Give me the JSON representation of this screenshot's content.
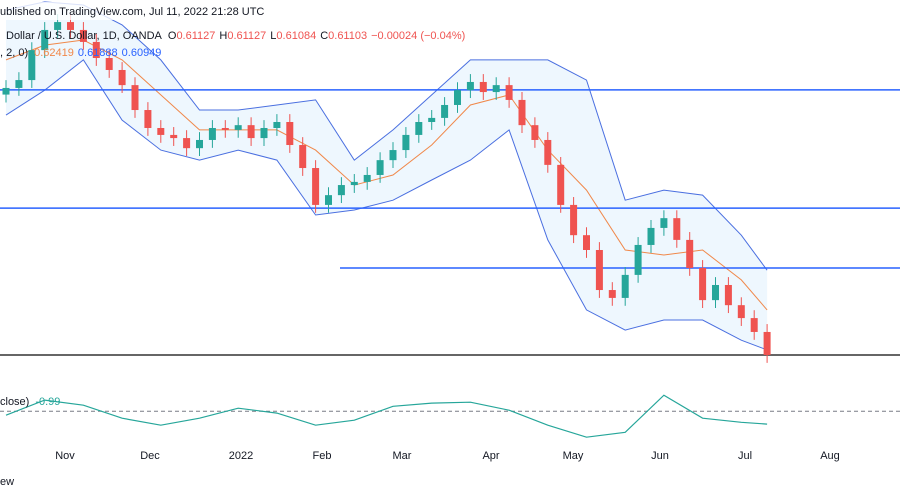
{
  "chart_data": {
    "type": "candlestick",
    "title": "ublished on TradingView.com, Jul 11, 2022 21:28 UTC",
    "symbol": "Dollar / U.S. Dollar, 1D, OANDA",
    "ohlc_legend": {
      "o_label": "O",
      "open": 0.61127,
      "h_label": "H",
      "high": 0.61127,
      "l_label": "L",
      "low": 0.61084,
      "c_label": "C",
      "close": 0.61103,
      "change": "−0.00024 (−0.04%)"
    },
    "bb_label": ", 2, 0)",
    "bb_values": [
      0.62419,
      0.61888,
      0.60949
    ],
    "up_color": "#26a69a",
    "down_color": "#ef5350",
    "open": [
      0.695,
      0.6971,
      0.6996,
      0.7091,
      0.7155,
      0.718,
      0.7155,
      0.7117,
      0.7066,
      0.7028,
      0.698,
      0.6901,
      0.6844,
      0.6822,
      0.6812,
      0.678,
      0.6806,
      0.6844,
      0.6838,
      0.6853,
      0.6812,
      0.6844,
      0.6863,
      0.679,
      0.6717,
      0.66,
      0.6631,
      0.6663,
      0.6673,
      0.6695,
      0.6742,
      0.6774,
      0.6822,
      0.6863,
      0.6876,
      0.6917,
      0.6964,
      0.699,
      0.6958,
      0.698,
      0.6933,
      0.6853,
      0.6806,
      0.6727,
      0.66,
      0.6504,
      0.6457,
      0.633,
      0.6305,
      0.6378,
      0.6473,
      0.6527,
      0.6558,
      0.6489,
      0.64,
      0.6298,
      0.6346,
      0.6282,
      0.6241,
      0.6197
    ],
    "high": [
      0.6996,
      0.7021,
      0.7116,
      0.718,
      0.7205,
      0.7205,
      0.718,
      0.7142,
      0.7091,
      0.7053,
      0.7005,
      0.6926,
      0.6869,
      0.6847,
      0.6837,
      0.6831,
      0.6869,
      0.6869,
      0.6878,
      0.6878,
      0.6869,
      0.6888,
      0.6888,
      0.6815,
      0.6742,
      0.6656,
      0.6688,
      0.6698,
      0.672,
      0.6767,
      0.6799,
      0.6847,
      0.6888,
      0.6901,
      0.6942,
      0.6989,
      0.7015,
      0.7015,
      0.7005,
      0.7005,
      0.6958,
      0.6878,
      0.6831,
      0.6752,
      0.6625,
      0.6529,
      0.6482,
      0.6355,
      0.6403,
      0.6498,
      0.6552,
      0.6583,
      0.6583,
      0.6514,
      0.6425,
      0.6371,
      0.6371,
      0.6307,
      0.6266,
      0.6222
    ],
    "low": [
      0.6925,
      0.6946,
      0.6971,
      0.7066,
      0.713,
      0.713,
      0.7092,
      0.7041,
      0.7003,
      0.6955,
      0.6876,
      0.6819,
      0.6797,
      0.6787,
      0.6755,
      0.6755,
      0.6781,
      0.6813,
      0.6813,
      0.6787,
      0.6787,
      0.6819,
      0.6765,
      0.6692,
      0.6575,
      0.6575,
      0.6606,
      0.6638,
      0.6648,
      0.667,
      0.6717,
      0.6749,
      0.6797,
      0.6838,
      0.6851,
      0.6892,
      0.6939,
      0.6933,
      0.6933,
      0.6908,
      0.6828,
      0.6781,
      0.6702,
      0.6575,
      0.6479,
      0.6432,
      0.6305,
      0.628,
      0.628,
      0.6353,
      0.6448,
      0.6502,
      0.6464,
      0.6375,
      0.6273,
      0.6273,
      0.6257,
      0.6216,
      0.6172,
      0.6099
    ],
    "close": [
      0.6971,
      0.6996,
      0.7091,
      0.7155,
      0.718,
      0.7155,
      0.7117,
      0.7066,
      0.7028,
      0.698,
      0.6901,
      0.6844,
      0.6822,
      0.6812,
      0.678,
      0.6806,
      0.6844,
      0.6838,
      0.6853,
      0.6812,
      0.6844,
      0.6863,
      0.679,
      0.6717,
      0.66,
      0.6631,
      0.6663,
      0.6673,
      0.6695,
      0.6742,
      0.6774,
      0.6822,
      0.6863,
      0.6876,
      0.6917,
      0.6964,
      0.699,
      0.6958,
      0.698,
      0.6933,
      0.6853,
      0.6806,
      0.6727,
      0.66,
      0.6504,
      0.6457,
      0.633,
      0.6305,
      0.6378,
      0.6473,
      0.6527,
      0.6558,
      0.6489,
      0.64,
      0.6298,
      0.6346,
      0.6282,
      0.6241,
      0.6197,
      0.6124
    ],
    "ylim": [
      0.607,
      0.725
    ],
    "bollinger": {
      "x": [
        0,
        3,
        6,
        9,
        12,
        15,
        18,
        21,
        24,
        27,
        30,
        33,
        36,
        39,
        42,
        45,
        48,
        51,
        54,
        57,
        59
      ],
      "upper": [
        0.7218,
        0.7244,
        0.7234,
        0.7171,
        0.706,
        0.6901,
        0.6901,
        0.6917,
        0.6933,
        0.6742,
        0.6838,
        0.6949,
        0.706,
        0.706,
        0.706,
        0.6996,
        0.6615,
        0.6647,
        0.6631,
        0.6504,
        0.6393
      ],
      "basis": [
        0.706,
        0.7107,
        0.7123,
        0.706,
        0.6949,
        0.6838,
        0.6838,
        0.6838,
        0.6774,
        0.6663,
        0.6695,
        0.679,
        0.6917,
        0.6949,
        0.6774,
        0.6647,
        0.6457,
        0.6441,
        0.6457,
        0.6362,
        0.6267
      ],
      "lower": [
        0.6885,
        0.6964,
        0.706,
        0.6869,
        0.6774,
        0.6742,
        0.6774,
        0.6742,
        0.6568,
        0.6584,
        0.6615,
        0.6679,
        0.6742,
        0.6838,
        0.6489,
        0.6267,
        0.6203,
        0.6235,
        0.6235,
        0.6171,
        0.614
      ],
      "band_color": "#4a6fe0",
      "basis_color": "#f0884a"
    },
    "levels": [
      {
        "value": 0.6965,
        "color": "#2962ff"
      },
      {
        "value": 0.659,
        "color": "#2962ff"
      },
      {
        "value": 0.64,
        "color": "#2962ff"
      },
      {
        "value": 0.6124,
        "color": "#333333"
      }
    ],
    "oscillator": {
      "label": "close)",
      "x": [
        0,
        3,
        6,
        9,
        12,
        15,
        18,
        21,
        24,
        27,
        30,
        33,
        36,
        39,
        42,
        45,
        48,
        51,
        54,
        57,
        59
      ],
      "values": [
        -0.31,
        0.85,
        0.46,
        -0.54,
        -1.08,
        -0.54,
        0.23,
        -0.15,
        -1.08,
        -0.69,
        0.38,
        0.62,
        0.69,
        0.08,
        -1.08,
        -2.0,
        -1.62,
        1.23,
        -0.54,
        -0.85,
        -0.99
      ],
      "ylim": [
        -2.6,
        2.4
      ],
      "reference": 0,
      "color": "#26a69a"
    },
    "x_labels": [
      "Nov",
      "Dec",
      "2022",
      "Feb",
      "Mar",
      "Apr",
      "May",
      "Jun",
      "Jul",
      "Aug"
    ],
    "footer": "ew"
  }
}
